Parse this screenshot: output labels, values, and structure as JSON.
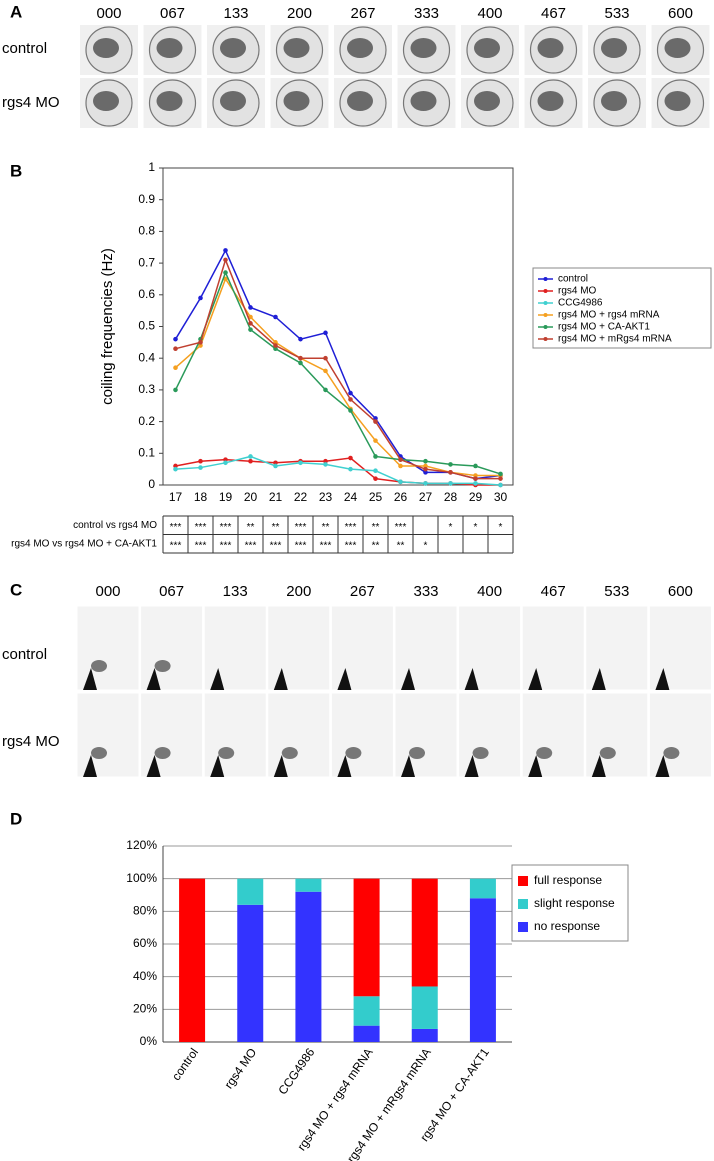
{
  "panel_a": {
    "label": "A",
    "frames": [
      "000",
      "067",
      "133",
      "200",
      "267",
      "333",
      "400",
      "467",
      "533",
      "600"
    ],
    "rows": [
      "control",
      "rgs4 MO"
    ]
  },
  "panel_b": {
    "label": "B",
    "table": {
      "rows": [
        {
          "label": "control vs rgs4 MO",
          "cells": [
            "***",
            "***",
            "***",
            "**",
            "**",
            "***",
            "**",
            "***",
            "**",
            "***",
            null,
            "*",
            "*",
            "*"
          ]
        },
        {
          "label": "rgs4 MO vs rgs4 MO + CA-AKT1",
          "cells": [
            "***",
            "***",
            "***",
            "***",
            "***",
            "***",
            "***",
            "***",
            "**",
            "**",
            "*",
            null,
            null,
            null
          ]
        }
      ]
    }
  },
  "panel_c": {
    "label": "C",
    "frames": [
      "000",
      "067",
      "133",
      "200",
      "267",
      "333",
      "400",
      "467",
      "533",
      "600"
    ],
    "rows": [
      "control",
      "rgs4 MO"
    ]
  },
  "panel_d": {
    "label": "D"
  },
  "chart_data": [
    {
      "type": "line",
      "ylabel": "coiling frequencies (Hz)",
      "categories": [
        "17",
        "18",
        "19",
        "20",
        "21",
        "22",
        "23",
        "24",
        "25",
        "26",
        "27",
        "28",
        "29",
        "30"
      ],
      "ylim": [
        0,
        1
      ],
      "yticks": [
        0,
        0.1,
        0.2,
        0.3,
        0.4,
        0.5,
        0.6,
        0.7,
        0.8,
        0.9,
        1
      ],
      "grid": false,
      "legend": "right",
      "series": [
        {
          "name": "control",
          "color": "#1f1fd6",
          "values": [
            0.46,
            0.59,
            0.74,
            0.56,
            0.53,
            0.46,
            0.48,
            0.29,
            0.21,
            0.09,
            0.04,
            0.04,
            0.02,
            0.03
          ]
        },
        {
          "name": "rgs4 MO",
          "color": "#e02020",
          "values": [
            0.06,
            0.075,
            0.08,
            0.075,
            0.07,
            0.075,
            0.075,
            0.085,
            0.02,
            0.01,
            0.005,
            0.005,
            0,
            0
          ]
        },
        {
          "name": "CCG4986",
          "color": "#40d0d0",
          "values": [
            0.05,
            0.055,
            0.07,
            0.09,
            0.06,
            0.07,
            0.065,
            0.05,
            0.045,
            0.01,
            0.005,
            0.005,
            0.005,
            0
          ]
        },
        {
          "name": "rgs4 MO + rgs4 mRNA",
          "color": "#f5a020",
          "values": [
            0.37,
            0.44,
            0.65,
            0.53,
            0.45,
            0.4,
            0.36,
            0.24,
            0.14,
            0.06,
            0.06,
            0.04,
            0.03,
            0.03
          ]
        },
        {
          "name": "rgs4 MO + CA-AKT1",
          "color": "#2a9a5a",
          "values": [
            0.3,
            0.46,
            0.67,
            0.49,
            0.43,
            0.385,
            0.3,
            0.235,
            0.09,
            0.08,
            0.075,
            0.065,
            0.06,
            0.035
          ]
        },
        {
          "name": "rgs4 MO + mRgs4 mRNA",
          "color": "#c04030",
          "values": [
            0.43,
            0.45,
            0.71,
            0.51,
            0.44,
            0.4,
            0.4,
            0.27,
            0.2,
            0.08,
            0.05,
            0.04,
            0.02,
            0.02
          ]
        }
      ]
    },
    {
      "type": "stacked_bar",
      "categories": [
        "control",
        "rgs4 MO",
        "CCG4986",
        "rgs4 MO + rgs4 mRNA",
        "rgs4 MO + mRgs4 mRNA",
        "rgs4 MO + CA-AKT1"
      ],
      "ylim": [
        0,
        120
      ],
      "yticks": [
        {
          "value": 0,
          "label": "0%"
        },
        {
          "value": 20,
          "label": "20%"
        },
        {
          "value": 40,
          "label": "40%"
        },
        {
          "value": 60,
          "label": "60%"
        },
        {
          "value": 80,
          "label": "80%"
        },
        {
          "value": 100,
          "label": "100%"
        },
        {
          "value": 120,
          "label": "120%"
        }
      ],
      "grid": true,
      "legend": "right",
      "series": [
        {
          "name": "no response",
          "color": "#3333ff",
          "values": [
            0,
            84,
            92,
            10,
            8,
            88
          ]
        },
        {
          "name": "slight response",
          "color": "#33cccc",
          "values": [
            0,
            16,
            8,
            18,
            26,
            12
          ]
        },
        {
          "name": "full response",
          "color": "#ff0000",
          "values": [
            100,
            0,
            0,
            72,
            66,
            0
          ]
        }
      ]
    }
  ]
}
